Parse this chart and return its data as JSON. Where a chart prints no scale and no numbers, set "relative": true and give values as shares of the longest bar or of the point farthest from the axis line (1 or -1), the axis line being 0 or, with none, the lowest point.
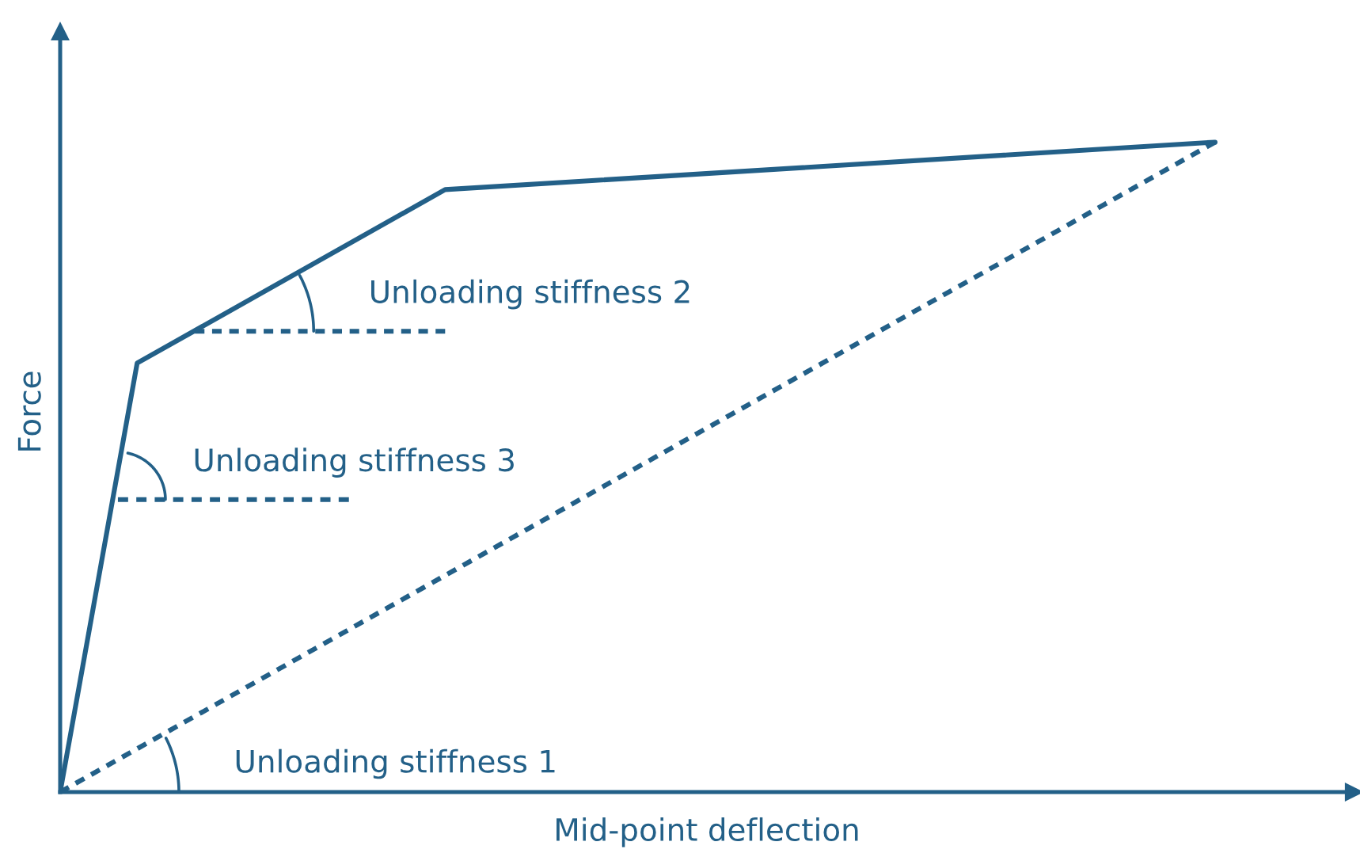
{
  "chart_data": {
    "type": "line",
    "relative": true,
    "xlabel": "Mid-point deflection",
    "ylabel": "Force",
    "line_style": "solid",
    "legend": false,
    "categories": [
      null,
      null,
      null,
      null,
      null,
      null,
      null,
      null,
      null,
      null,
      null,
      null,
      null,
      null,
      null,
      null,
      null,
      null,
      null,
      null,
      null,
      null,
      null,
      null,
      null,
      null,
      null,
      null,
      null,
      null,
      null,
      null,
      null,
      null,
      null,
      null,
      null,
      null,
      null,
      null,
      null,
      null,
      null,
      null,
      null,
      null,
      null,
      null,
      null,
      null,
      null,
      null,
      null,
      null,
      null,
      null,
      null,
      null,
      null,
      null,
      null
    ],
    "series": [
      {
        "color": "#236088",
        "values": [
          0,
          null,
          null,
          null,
          0.66,
          null,
          null,
          null,
          null,
          null,
          null,
          null,
          null,
          null,
          null,
          null,
          null,
          null,
          null,
          null,
          0.927,
          null,
          null,
          null,
          null,
          null,
          null,
          null,
          null,
          null,
          null,
          null,
          null,
          null,
          null,
          null,
          null,
          null,
          null,
          null,
          null,
          null,
          null,
          null,
          null,
          null,
          null,
          null,
          null,
          null,
          null,
          null,
          null,
          null,
          null,
          null,
          null,
          null,
          null,
          null,
          1
        ]
      },
      {
        "color": "#236088",
        "line_style": "dashed",
        "values": [
          0,
          null,
          null,
          null,
          null,
          null,
          null,
          null,
          null,
          null,
          null,
          null,
          null,
          null,
          null,
          null,
          null,
          null,
          null,
          null,
          null,
          null,
          null,
          null,
          null,
          null,
          null,
          null,
          null,
          null,
          null,
          null,
          null,
          null,
          null,
          null,
          null,
          null,
          null,
          null,
          null,
          null,
          null,
          null,
          null,
          null,
          null,
          null,
          null,
          null,
          null,
          null,
          null,
          null,
          null,
          null,
          null,
          null,
          null,
          null,
          1
        ]
      },
      {
        "color": "#236088",
        "line_style": "dashed",
        "values": [
          null,
          null,
          null,
          null,
          null,
          null,
          null,
          0.709,
          null,
          null,
          null,
          null,
          null,
          null,
          null,
          null,
          null,
          null,
          null,
          null,
          0.709,
          null,
          null,
          null,
          null,
          null,
          null,
          null,
          null,
          null,
          null,
          null,
          null,
          null,
          null,
          null,
          null,
          null,
          null,
          null,
          null,
          null,
          null,
          null,
          null,
          null,
          null,
          null,
          null,
          null,
          null,
          null,
          null,
          null,
          null,
          null,
          null,
          null,
          null,
          null,
          null
        ]
      },
      {
        "color": "#236088",
        "line_style": "dashed",
        "values": [
          null,
          null,
          null,
          0.45,
          null,
          null,
          null,
          null,
          null,
          null,
          null,
          null,
          null,
          null,
          null,
          0.45,
          null,
          null,
          null,
          null,
          null,
          null,
          null,
          null,
          null,
          null,
          null,
          null,
          null,
          null,
          null,
          null,
          null,
          null,
          null,
          null,
          null,
          null,
          null,
          null,
          null,
          null,
          null,
          null,
          null,
          null,
          null,
          null,
          null,
          null,
          null,
          null,
          null,
          null,
          null,
          null,
          null,
          null,
          null,
          null,
          null
        ]
      }
    ],
    "annotations": [
      "Unloading stiffness 1",
      "Unloading stiffness 2",
      "Unloading stiffness 3"
    ]
  }
}
